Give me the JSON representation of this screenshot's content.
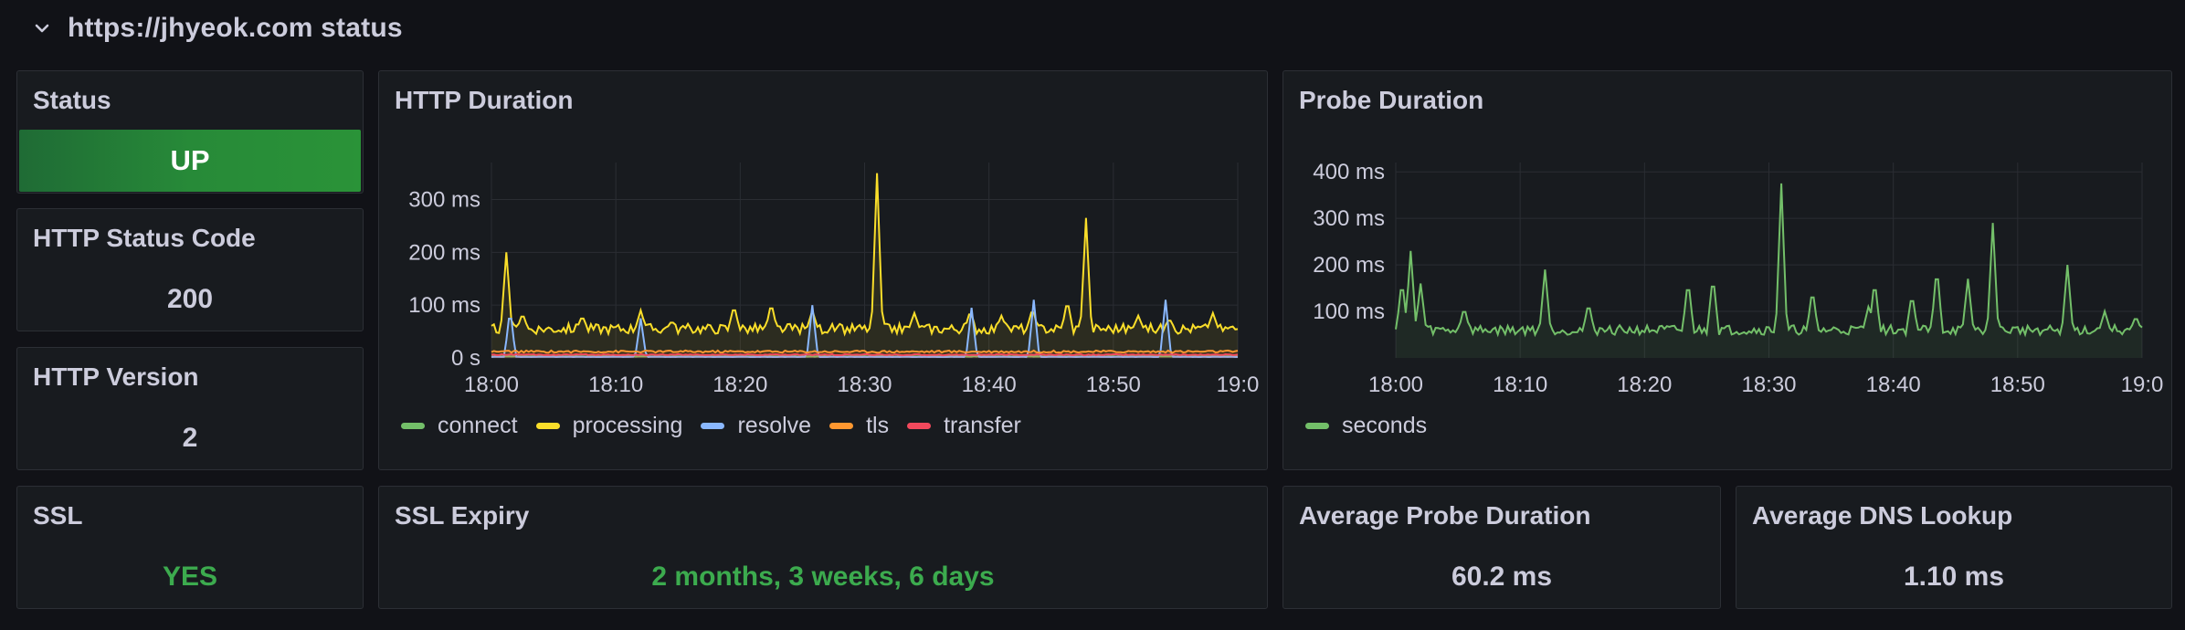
{
  "row": {
    "title": "https://jhyeok.com status",
    "collapse_icon": "chevron-down-icon"
  },
  "status": {
    "title": "Status",
    "value": "UP",
    "color": "#2a9338"
  },
  "http_status_code": {
    "title": "HTTP Status Code",
    "value": "200"
  },
  "http_version": {
    "title": "HTTP Version",
    "value": "2"
  },
  "ssl": {
    "title": "SSL",
    "value": "YES",
    "color": "#3cab4e"
  },
  "ssl_expiry": {
    "title": "SSL Expiry",
    "value": "2 months, 3 weeks, 6 days",
    "color": "#3cab4e"
  },
  "avg_probe": {
    "title": "Average Probe Duration",
    "value": "60.2 ms"
  },
  "avg_dns": {
    "title": "Average DNS Lookup",
    "value": "1.10 ms"
  },
  "http_duration": {
    "title": "HTTP Duration"
  },
  "probe_duration": {
    "title": "Probe Duration"
  },
  "chart_data": [
    {
      "type": "line",
      "title": "HTTP Duration",
      "x_ticks": [
        "18:00",
        "18:10",
        "18:20",
        "18:30",
        "18:40",
        "18:50",
        "19:0"
      ],
      "y_ticks": [
        "0 s",
        "100 ms",
        "200 ms",
        "300 ms"
      ],
      "ylim_ms": [
        0,
        370
      ],
      "xlim_min": [
        0,
        60
      ],
      "grid": true,
      "legend_position": "bottom-left",
      "series": [
        {
          "name": "connect",
          "color": "#73bf69",
          "baseline_ms": 3,
          "spikes": []
        },
        {
          "name": "processing",
          "color": "#fade2a",
          "baseline_ms": 55,
          "spikes": [
            [
              1.2,
              200
            ],
            [
              2.5,
              85
            ],
            [
              7.3,
              80
            ],
            [
              12.0,
              90
            ],
            [
              14.5,
              70
            ],
            [
              19.5,
              100
            ],
            [
              22.5,
              105
            ],
            [
              25.8,
              90
            ],
            [
              31.0,
              350
            ],
            [
              34.0,
              85
            ],
            [
              38.5,
              90
            ],
            [
              41.0,
              80
            ],
            [
              43.5,
              95
            ],
            [
              46.3,
              110
            ],
            [
              47.8,
              265
            ],
            [
              52.0,
              80
            ],
            [
              54.5,
              75
            ],
            [
              58.0,
              85
            ]
          ]
        },
        {
          "name": "resolve",
          "color": "#8ab8ff",
          "baseline_ms": 2,
          "spikes": [
            [
              1.5,
              95
            ],
            [
              12.0,
              75
            ],
            [
              25.8,
              100
            ],
            [
              38.6,
              95
            ],
            [
              43.6,
              110
            ],
            [
              54.2,
              110
            ]
          ]
        },
        {
          "name": "tls",
          "color": "#ff9830",
          "baseline_ms": 12,
          "spikes": []
        },
        {
          "name": "transfer",
          "color": "#f2495c",
          "baseline_ms": 6,
          "spikes": []
        }
      ]
    },
    {
      "type": "line",
      "title": "Probe Duration",
      "x_ticks": [
        "18:00",
        "18:10",
        "18:20",
        "18:30",
        "18:40",
        "18:50",
        "19:0"
      ],
      "y_ticks": [
        "100 ms",
        "200 ms",
        "300 ms",
        "400 ms"
      ],
      "ylim_ms": [
        0,
        420
      ],
      "xlim_min": [
        0,
        60
      ],
      "grid": true,
      "legend_position": "bottom-left",
      "series": [
        {
          "name": "seconds",
          "color": "#73bf69",
          "baseline_ms": 60,
          "spikes": [
            [
              0.5,
              170
            ],
            [
              1.2,
              230
            ],
            [
              2.0,
              160
            ],
            [
              5.5,
              110
            ],
            [
              12.0,
              190
            ],
            [
              15.5,
              120
            ],
            [
              23.5,
              170
            ],
            [
              25.5,
              180
            ],
            [
              31.0,
              375
            ],
            [
              33.5,
              150
            ],
            [
              38.0,
              110
            ],
            [
              38.5,
              170
            ],
            [
              41.5,
              140
            ],
            [
              43.5,
              200
            ],
            [
              46.0,
              170
            ],
            [
              48.0,
              290
            ],
            [
              54.0,
              200
            ],
            [
              57.0,
              100
            ],
            [
              59.5,
              90
            ]
          ]
        }
      ]
    }
  ]
}
